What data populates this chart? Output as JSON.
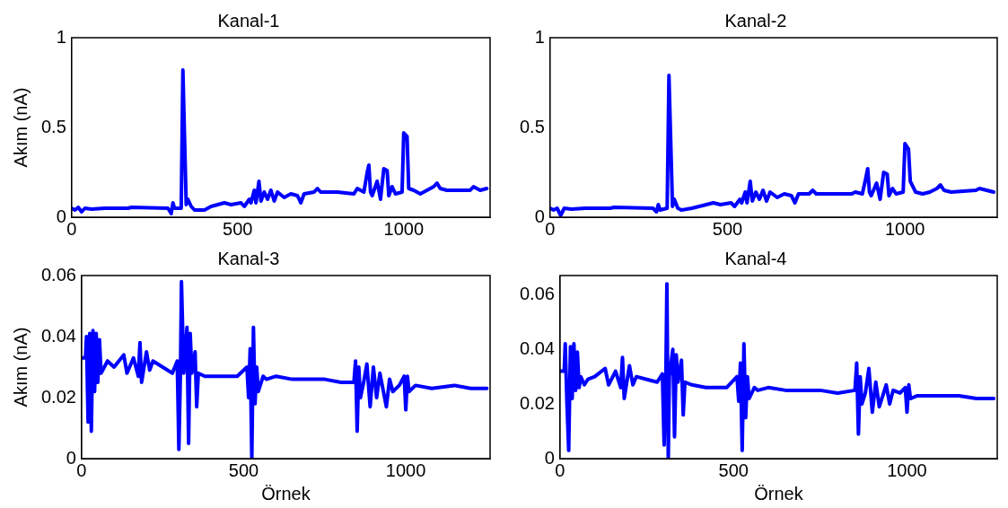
{
  "chart_data": [
    {
      "type": "line",
      "title": "Kanal-1",
      "ylabel": "Akım (nA)",
      "color": "#0000ff",
      "xlim": [
        0,
        1260
      ],
      "xticks": [
        0,
        500,
        1000
      ],
      "ylim": [
        0,
        1
      ],
      "yticks": [
        0,
        0.5,
        1
      ],
      "x": [
        0,
        10,
        20,
        30,
        40,
        60,
        100,
        170,
        180,
        290,
        300,
        305,
        310,
        330,
        335,
        345,
        350,
        360,
        370,
        400,
        420,
        440,
        460,
        480,
        510,
        520,
        535,
        540,
        550,
        555,
        564,
        570,
        580,
        590,
        600,
        610,
        620,
        640,
        660,
        680,
        690,
        700,
        730,
        740,
        750,
        800,
        850,
        860,
        880,
        890,
        895,
        900,
        905,
        920,
        930,
        940,
        950,
        955,
        965,
        975,
        995,
        1000,
        1010,
        1015,
        1030,
        1050,
        1070,
        1090,
        1100,
        1110,
        1130,
        1200,
        1210,
        1230,
        1250
      ],
      "values": [
        0.05,
        0.04,
        0.055,
        0.03,
        0.05,
        0.045,
        0.05,
        0.05,
        0.055,
        0.05,
        0.02,
        0.08,
        0.05,
        0.05,
        0.82,
        0.07,
        0.1,
        0.06,
        0.04,
        0.04,
        0.06,
        0.07,
        0.08,
        0.07,
        0.08,
        0.06,
        0.1,
        0.08,
        0.15,
        0.08,
        0.2,
        0.09,
        0.14,
        0.1,
        0.15,
        0.09,
        0.14,
        0.11,
        0.13,
        0.12,
        0.08,
        0.13,
        0.14,
        0.16,
        0.14,
        0.14,
        0.13,
        0.16,
        0.14,
        0.25,
        0.29,
        0.14,
        0.12,
        0.2,
        0.1,
        0.27,
        0.26,
        0.12,
        0.17,
        0.13,
        0.14,
        0.47,
        0.45,
        0.16,
        0.15,
        0.13,
        0.15,
        0.17,
        0.19,
        0.16,
        0.15,
        0.15,
        0.17,
        0.15,
        0.16
      ]
    },
    {
      "type": "line",
      "title": "Kanal-2",
      "color": "#0000ff",
      "xlim": [
        0,
        1260
      ],
      "xticks": [
        0,
        500,
        1000
      ],
      "ylim": [
        0,
        1
      ],
      "yticks": [
        0,
        0.5,
        1
      ],
      "x": [
        0,
        10,
        20,
        30,
        40,
        60,
        100,
        170,
        180,
        290,
        300,
        305,
        310,
        330,
        335,
        345,
        350,
        360,
        370,
        400,
        420,
        440,
        460,
        480,
        510,
        520,
        535,
        540,
        550,
        555,
        564,
        570,
        580,
        590,
        600,
        610,
        620,
        640,
        660,
        680,
        690,
        700,
        730,
        740,
        750,
        800,
        850,
        860,
        880,
        890,
        895,
        900,
        905,
        920,
        930,
        940,
        950,
        955,
        965,
        975,
        995,
        1000,
        1010,
        1015,
        1030,
        1050,
        1070,
        1090,
        1100,
        1110,
        1130,
        1200,
        1210,
        1230,
        1250
      ],
      "values": [
        0.05,
        0.04,
        0.05,
        0.01,
        0.05,
        0.045,
        0.05,
        0.05,
        0.055,
        0.05,
        0.03,
        0.07,
        0.04,
        0.05,
        0.79,
        0.06,
        0.1,
        0.05,
        0.04,
        0.05,
        0.06,
        0.07,
        0.08,
        0.07,
        0.08,
        0.06,
        0.1,
        0.08,
        0.14,
        0.08,
        0.2,
        0.09,
        0.14,
        0.1,
        0.15,
        0.09,
        0.14,
        0.11,
        0.13,
        0.12,
        0.08,
        0.13,
        0.13,
        0.15,
        0.13,
        0.13,
        0.13,
        0.14,
        0.13,
        0.22,
        0.27,
        0.14,
        0.12,
        0.19,
        0.1,
        0.25,
        0.24,
        0.12,
        0.16,
        0.13,
        0.14,
        0.41,
        0.38,
        0.2,
        0.14,
        0.13,
        0.14,
        0.16,
        0.18,
        0.15,
        0.14,
        0.15,
        0.16,
        0.15,
        0.14
      ]
    },
    {
      "type": "line",
      "title": "Kanal-3",
      "xlabel": "Örnek",
      "ylabel": "Akım (nA)",
      "color": "#0000ff",
      "xlim": [
        0,
        1260
      ],
      "xticks": [
        0,
        500,
        1000
      ],
      "ylim": [
        0,
        0.06
      ],
      "yticks": [
        0,
        0.02,
        0.04,
        0.06
      ],
      "x": [
        0,
        12,
        15,
        20,
        25,
        30,
        35,
        40,
        45,
        50,
        55,
        60,
        70,
        80,
        100,
        130,
        140,
        160,
        175,
        180,
        185,
        200,
        210,
        220,
        250,
        280,
        295,
        300,
        305,
        308,
        315,
        325,
        330,
        335,
        340,
        350,
        355,
        360,
        380,
        420,
        480,
        510,
        515,
        520,
        525,
        530,
        535,
        540,
        545,
        560,
        570,
        600,
        650,
        700,
        750,
        800,
        840,
        845,
        850,
        855,
        860,
        870,
        880,
        890,
        900,
        910,
        920,
        940,
        950,
        960,
        980,
        995,
        1000,
        1005,
        1010,
        1030,
        1080,
        1150,
        1200,
        1250
      ],
      "values": [
        0.033,
        0.033,
        0.04,
        0.012,
        0.041,
        0.009,
        0.042,
        0.022,
        0.041,
        0.025,
        0.039,
        0.028,
        0.03,
        0.032,
        0.03,
        0.034,
        0.028,
        0.033,
        0.027,
        0.038,
        0.025,
        0.035,
        0.029,
        0.032,
        0.03,
        0.028,
        0.032,
        0.003,
        0.029,
        0.058,
        0.028,
        0.043,
        0.005,
        0.041,
        0.028,
        0.035,
        0.017,
        0.028,
        0.027,
        0.027,
        0.027,
        0.03,
        0.02,
        0.036,
        0.0,
        0.043,
        0.018,
        0.03,
        0.022,
        0.027,
        0.026,
        0.027,
        0.026,
        0.026,
        0.026,
        0.025,
        0.025,
        0.032,
        0.009,
        0.03,
        0.02,
        0.025,
        0.031,
        0.017,
        0.03,
        0.02,
        0.028,
        0.017,
        0.026,
        0.022,
        0.024,
        0.027,
        0.016,
        0.027,
        0.022,
        0.024,
        0.023,
        0.024,
        0.023,
        0.023
      ]
    },
    {
      "type": "line",
      "title": "Kanal-4",
      "xlabel": "Örnek",
      "color": "#0000ff",
      "xlim": [
        0,
        1260
      ],
      "xticks": [
        0,
        500,
        1000
      ],
      "ylim": [
        0,
        0.067
      ],
      "yticks": [
        0,
        0.02,
        0.04,
        0.06
      ],
      "x": [
        0,
        12,
        15,
        20,
        25,
        30,
        35,
        40,
        45,
        50,
        55,
        60,
        70,
        80,
        100,
        130,
        140,
        160,
        175,
        180,
        185,
        200,
        210,
        220,
        250,
        280,
        295,
        300,
        305,
        308,
        312,
        315,
        325,
        330,
        335,
        340,
        350,
        355,
        360,
        380,
        420,
        480,
        510,
        515,
        520,
        525,
        530,
        535,
        540,
        545,
        560,
        570,
        600,
        650,
        700,
        750,
        800,
        850,
        855,
        860,
        865,
        870,
        880,
        890,
        900,
        910,
        920,
        940,
        950,
        960,
        980,
        995,
        1000,
        1005,
        1010,
        1030,
        1080,
        1150,
        1200,
        1250
      ],
      "values": [
        0.032,
        0.032,
        0.042,
        0.02,
        0.003,
        0.041,
        0.022,
        0.042,
        0.025,
        0.039,
        0.026,
        0.03,
        0.027,
        0.029,
        0.03,
        0.033,
        0.027,
        0.032,
        0.026,
        0.037,
        0.022,
        0.034,
        0.027,
        0.03,
        0.029,
        0.028,
        0.031,
        0.005,
        0.03,
        0.064,
        0.0,
        0.03,
        0.04,
        0.008,
        0.038,
        0.028,
        0.036,
        0.016,
        0.028,
        0.027,
        0.026,
        0.026,
        0.03,
        0.021,
        0.035,
        0.003,
        0.042,
        0.015,
        0.03,
        0.022,
        0.026,
        0.025,
        0.026,
        0.025,
        0.025,
        0.025,
        0.024,
        0.025,
        0.035,
        0.009,
        0.03,
        0.02,
        0.024,
        0.033,
        0.017,
        0.028,
        0.019,
        0.027,
        0.02,
        0.025,
        0.024,
        0.026,
        0.017,
        0.027,
        0.022,
        0.023,
        0.023,
        0.023,
        0.022,
        0.022
      ]
    }
  ]
}
